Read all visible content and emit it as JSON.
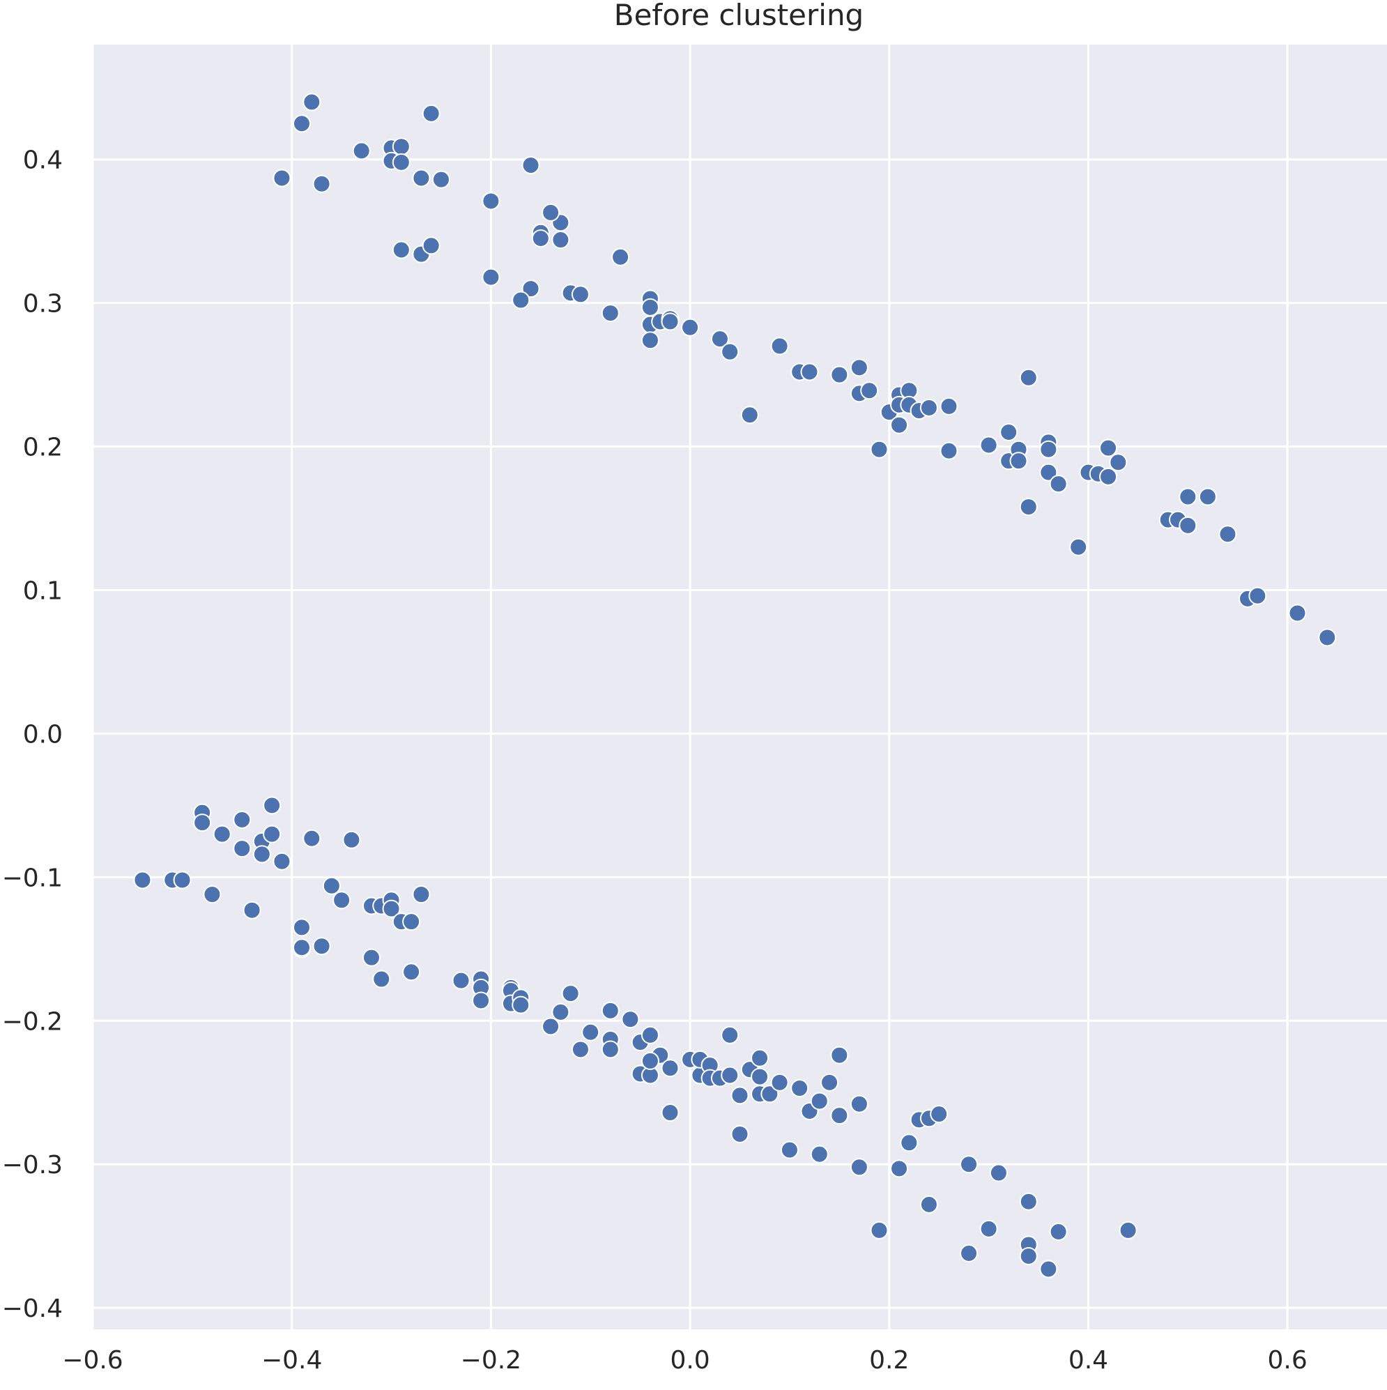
{
  "chart_data": {
    "type": "scatter",
    "title": "Before clustering",
    "xlabel": "",
    "ylabel": "",
    "xlim": [
      -0.6,
      0.7
    ],
    "ylim": [
      -0.415,
      0.48
    ],
    "grid": true,
    "point_color": "#4c72b0",
    "background_color": "#eaeaf2",
    "x_ticks": [
      -0.6,
      -0.4,
      -0.2,
      0.0,
      0.2,
      0.4,
      0.6
    ],
    "x_tick_labels": [
      "−0.6",
      "−0.4",
      "−0.2",
      "0.0",
      "0.2",
      "0.4",
      "0.6"
    ],
    "y_ticks": [
      -0.4,
      -0.3,
      -0.2,
      -0.1,
      0.0,
      0.1,
      0.2,
      0.3,
      0.4
    ],
    "y_tick_labels": [
      "−0.4",
      "−0.3",
      "−0.2",
      "−0.1",
      "0.0",
      "0.1",
      "0.2",
      "0.3",
      "0.4"
    ],
    "series": [
      {
        "x": [
          -0.38,
          -0.39,
          -0.26,
          -0.33,
          -0.3,
          -0.29,
          -0.3,
          -0.29,
          -0.41,
          -0.37,
          -0.27,
          -0.25,
          -0.16,
          -0.2,
          -0.29,
          -0.27,
          -0.26,
          -0.15,
          -0.13,
          -0.15,
          -0.14,
          -0.13,
          -0.07,
          -0.2,
          -0.16,
          -0.17,
          -0.12,
          -0.11,
          -0.08,
          -0.04,
          -0.04,
          -0.04,
          -0.03,
          -0.02,
          -0.02,
          -0.04,
          0.0,
          0.03,
          0.04,
          0.06,
          0.09,
          0.11,
          0.12,
          0.15,
          0.17,
          0.17,
          0.18,
          0.2,
          0.21,
          0.22,
          0.21,
          0.22,
          0.21,
          0.23,
          0.24,
          0.26,
          0.19,
          0.26,
          0.3,
          0.32,
          0.32,
          0.33,
          0.34,
          0.33,
          0.36,
          0.36,
          0.36,
          0.37,
          0.34,
          0.4,
          0.41,
          0.42,
          0.42,
          0.43,
          0.39,
          0.48,
          0.49,
          0.5,
          0.5,
          0.52,
          0.54,
          0.56,
          0.57,
          0.61,
          0.64
        ],
        "y": [
          0.44,
          0.425,
          0.432,
          0.406,
          0.408,
          0.409,
          0.399,
          0.398,
          0.387,
          0.383,
          0.387,
          0.386,
          0.396,
          0.371,
          0.337,
          0.334,
          0.34,
          0.349,
          0.356,
          0.345,
          0.363,
          0.344,
          0.332,
          0.318,
          0.31,
          0.302,
          0.307,
          0.306,
          0.293,
          0.303,
          0.297,
          0.285,
          0.287,
          0.289,
          0.287,
          0.274,
          0.283,
          0.275,
          0.266,
          0.222,
          0.27,
          0.252,
          0.252,
          0.25,
          0.255,
          0.237,
          0.239,
          0.224,
          0.236,
          0.239,
          0.229,
          0.229,
          0.215,
          0.225,
          0.227,
          0.228,
          0.198,
          0.197,
          0.201,
          0.21,
          0.19,
          0.198,
          0.248,
          0.19,
          0.203,
          0.182,
          0.198,
          0.174,
          0.158,
          0.182,
          0.181,
          0.199,
          0.179,
          0.189,
          0.13,
          0.149,
          0.149,
          0.165,
          0.145,
          0.165,
          0.139,
          0.094,
          0.096,
          0.084,
          0.067
        ]
      },
      {
        "x": [
          -0.55,
          -0.52,
          -0.51,
          -0.49,
          -0.49,
          -0.48,
          -0.47,
          -0.45,
          -0.45,
          -0.43,
          -0.43,
          -0.42,
          -0.42,
          -0.41,
          -0.44,
          -0.38,
          -0.34,
          -0.36,
          -0.35,
          -0.32,
          -0.31,
          -0.3,
          -0.3,
          -0.29,
          -0.27,
          -0.28,
          -0.39,
          -0.39,
          -0.39,
          -0.37,
          -0.32,
          -0.31,
          -0.28,
          -0.23,
          -0.21,
          -0.21,
          -0.21,
          -0.18,
          -0.18,
          -0.18,
          -0.17,
          -0.17,
          -0.14,
          -0.13,
          -0.12,
          -0.1,
          -0.11,
          -0.08,
          -0.08,
          -0.08,
          -0.06,
          -0.05,
          -0.05,
          -0.04,
          -0.04,
          -0.04,
          -0.03,
          -0.02,
          -0.02,
          -0.04,
          0.0,
          0.01,
          0.01,
          0.02,
          0.02,
          0.03,
          0.04,
          0.04,
          0.05,
          0.05,
          0.05,
          0.06,
          0.07,
          0.07,
          0.07,
          0.08,
          0.09,
          0.1,
          0.11,
          0.12,
          0.13,
          0.13,
          0.14,
          0.15,
          0.15,
          0.17,
          0.17,
          0.19,
          0.21,
          0.22,
          0.23,
          0.24,
          0.24,
          0.25,
          0.28,
          0.28,
          0.3,
          0.31,
          0.34,
          0.34,
          0.34,
          0.36,
          0.37,
          0.44
        ],
        "y": [
          -0.102,
          -0.102,
          -0.102,
          -0.055,
          -0.062,
          -0.112,
          -0.07,
          -0.06,
          -0.08,
          -0.075,
          -0.084,
          -0.05,
          -0.07,
          -0.089,
          -0.123,
          -0.073,
          -0.074,
          -0.106,
          -0.116,
          -0.12,
          -0.12,
          -0.116,
          -0.122,
          -0.131,
          -0.112,
          -0.131,
          -0.135,
          -0.15,
          -0.149,
          -0.148,
          -0.156,
          -0.171,
          -0.166,
          -0.172,
          -0.171,
          -0.177,
          -0.186,
          -0.177,
          -0.179,
          -0.188,
          -0.184,
          -0.189,
          -0.204,
          -0.194,
          -0.181,
          -0.208,
          -0.22,
          -0.193,
          -0.213,
          -0.22,
          -0.199,
          -0.215,
          -0.237,
          -0.21,
          -0.228,
          -0.238,
          -0.224,
          -0.233,
          -0.264,
          -0.228,
          -0.227,
          -0.238,
          -0.227,
          -0.231,
          -0.24,
          -0.24,
          -0.238,
          -0.21,
          -0.252,
          -0.279,
          -0.252,
          -0.234,
          -0.239,
          -0.251,
          -0.226,
          -0.251,
          -0.243,
          -0.29,
          -0.247,
          -0.263,
          -0.293,
          -0.256,
          -0.243,
          -0.266,
          -0.224,
          -0.258,
          -0.302,
          -0.346,
          -0.303,
          -0.285,
          -0.269,
          -0.328,
          -0.268,
          -0.265,
          -0.3,
          -0.362,
          -0.345,
          -0.306,
          -0.356,
          -0.326,
          -0.364,
          -0.373,
          -0.347,
          -0.346
        ]
      }
    ]
  }
}
